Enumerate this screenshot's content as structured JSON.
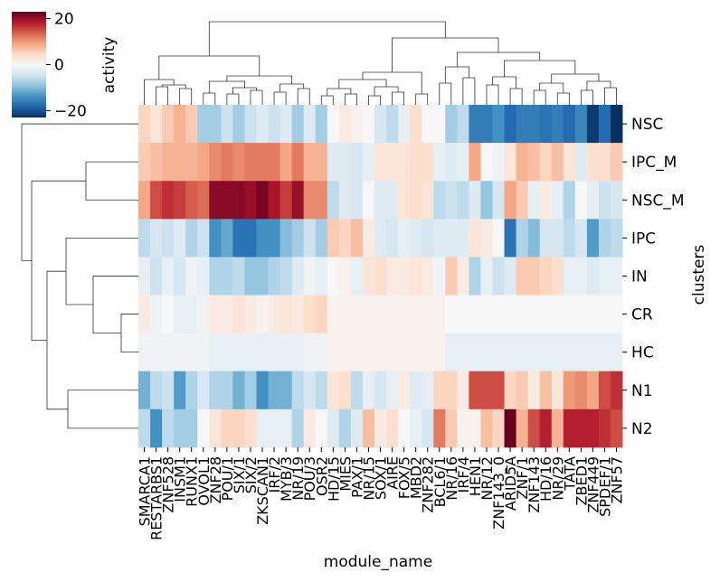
{
  "chart_data": {
    "type": "heatmap",
    "title": "",
    "xlabel": "module_name",
    "ylabel": "clusters",
    "colorbar": {
      "label": "activity",
      "range": [
        -23,
        23
      ],
      "ticks": [
        {
          "value": 20,
          "label": "20"
        },
        {
          "value": 0,
          "label": "0"
        },
        {
          "value": -20,
          "label": "−20"
        }
      ],
      "colormap": [
        "#053061",
        "#2166ac",
        "#4393c3",
        "#92c5de",
        "#d1e5f0",
        "#f7f7f7",
        "#fddbc7",
        "#f4a582",
        "#d6604d",
        "#b2182b",
        "#67001f"
      ]
    },
    "rows": [
      "NSC",
      "IPC_M",
      "NSC_M",
      "IPC",
      "IN",
      "CR",
      "HC",
      "N1",
      "N2"
    ],
    "col_labels": [
      "SMARCA1",
      "RESTARBS1",
      "ZNF528",
      "INSM1",
      "RUNX1",
      "OVOL1",
      "ZNF28",
      "POU/1",
      "SIX/1",
      "SIX/2",
      "ZKSCAN1",
      "IRF/2",
      "MYB/3",
      "NR/19",
      "POU/3",
      "OSR2",
      "HD/15",
      "MIES",
      "PAX/1",
      "NR/15",
      "SOX/1",
      "AIRE",
      "FOX/5",
      "MBD2",
      "ZNF282",
      "BCL6/1",
      "NR/16",
      "IRF/4",
      "HEN1",
      "NR/12",
      "ZNF143_0",
      "ARID5A",
      "ZNF/1",
      "ZNF143",
      "HD/16",
      "NR/29",
      "TATA",
      "ZBED1",
      "ZNF449",
      "SPDEF/1",
      "ZNF57"
    ],
    "values": [
      [
        5,
        3,
        6,
        8,
        6,
        -8,
        -8,
        -5,
        -8,
        -5,
        -3,
        -5,
        -3,
        -8,
        -3,
        -8,
        0,
        2,
        1,
        0,
        -4,
        -6,
        -2,
        4,
        0,
        0,
        -8,
        -6,
        -16,
        -16,
        -14,
        -18,
        -16,
        -16,
        -17,
        -16,
        -18,
        -15,
        -22,
        -18,
        -24
      ],
      [
        6,
        7,
        8,
        8,
        8,
        9,
        11,
        12,
        11,
        12,
        12,
        12,
        9,
        12,
        8,
        8,
        -3,
        -3,
        -4,
        -2,
        3,
        3,
        3,
        4,
        4,
        -2,
        -3,
        -2,
        9,
        0,
        -1,
        3,
        8,
        7,
        5,
        7,
        3,
        -3,
        4,
        4,
        6
      ],
      [
        9,
        15,
        17,
        16,
        14,
        13,
        21,
        21,
        21,
        20,
        22,
        19,
        16,
        20,
        11,
        11,
        -6,
        -3,
        -4,
        0,
        -3,
        -3,
        3,
        4,
        3,
        -6,
        -5,
        -6,
        -3,
        -9,
        -4,
        9,
        6,
        -2,
        2,
        -2,
        -7,
        0,
        -2,
        -5,
        -4
      ],
      [
        -6,
        -4,
        -5,
        -3,
        -7,
        -5,
        -14,
        -12,
        -17,
        -17,
        -14,
        -14,
        -10,
        -8,
        -5,
        -8,
        6,
        5,
        7,
        2,
        -3,
        -4,
        -2,
        -3,
        -4,
        -3,
        -3,
        -3,
        3,
        2,
        0,
        -17,
        -7,
        -10,
        -4,
        -4,
        -6,
        -4,
        -13,
        -7,
        -6
      ],
      [
        -2,
        -5,
        -2,
        -4,
        -1,
        -2,
        -7,
        -7,
        -6,
        -9,
        -9,
        -7,
        -6,
        -3,
        -1,
        -2,
        0,
        1,
        -2,
        3,
        4,
        2,
        2,
        3,
        2,
        -1,
        6,
        2,
        -7,
        -2,
        -5,
        -3,
        6,
        6,
        5,
        4,
        -2,
        -2,
        -3,
        -2,
        -2
      ],
      [
        2,
        -1,
        0,
        -2,
        -2,
        -1,
        2,
        2,
        3,
        2,
        1,
        2,
        3,
        2,
        4,
        5,
        1,
        1,
        1,
        1,
        1,
        1,
        1,
        1,
        1,
        1,
        0,
        0,
        0,
        0,
        0,
        0,
        0,
        0,
        0,
        0,
        0,
        0,
        0,
        0,
        0
      ],
      [
        -1,
        -1,
        -1,
        -1,
        -1,
        -1,
        -2,
        -2,
        -2,
        -2,
        -2,
        -2,
        -2,
        -2,
        -1,
        -1,
        1,
        1,
        1,
        1,
        1,
        1,
        1,
        1,
        1,
        1,
        -2,
        -2,
        -2,
        -2,
        -2,
        -2,
        -2,
        -2,
        -2,
        -2,
        -2,
        -2,
        -2,
        -2,
        -2
      ],
      [
        -11,
        -6,
        -5,
        -13,
        -7,
        -4,
        -7,
        -7,
        -11,
        -8,
        -14,
        -11,
        -11,
        -6,
        -4,
        -6,
        3,
        4,
        -6,
        -2,
        -4,
        -2,
        2,
        -3,
        -2,
        5,
        5,
        2,
        15,
        15,
        15,
        5,
        6,
        2,
        7,
        3,
        10,
        11,
        9,
        15,
        17
      ],
      [
        -6,
        -14,
        -6,
        -8,
        -8,
        0,
        3,
        5,
        5,
        4,
        -2,
        -2,
        -2,
        -7,
        2,
        0,
        -3,
        -7,
        -3,
        7,
        2,
        4,
        0,
        -2,
        -4,
        12,
        6,
        1,
        1,
        7,
        5,
        25,
        8,
        15,
        18,
        8,
        18,
        18,
        18,
        17,
        15
      ]
    ]
  }
}
